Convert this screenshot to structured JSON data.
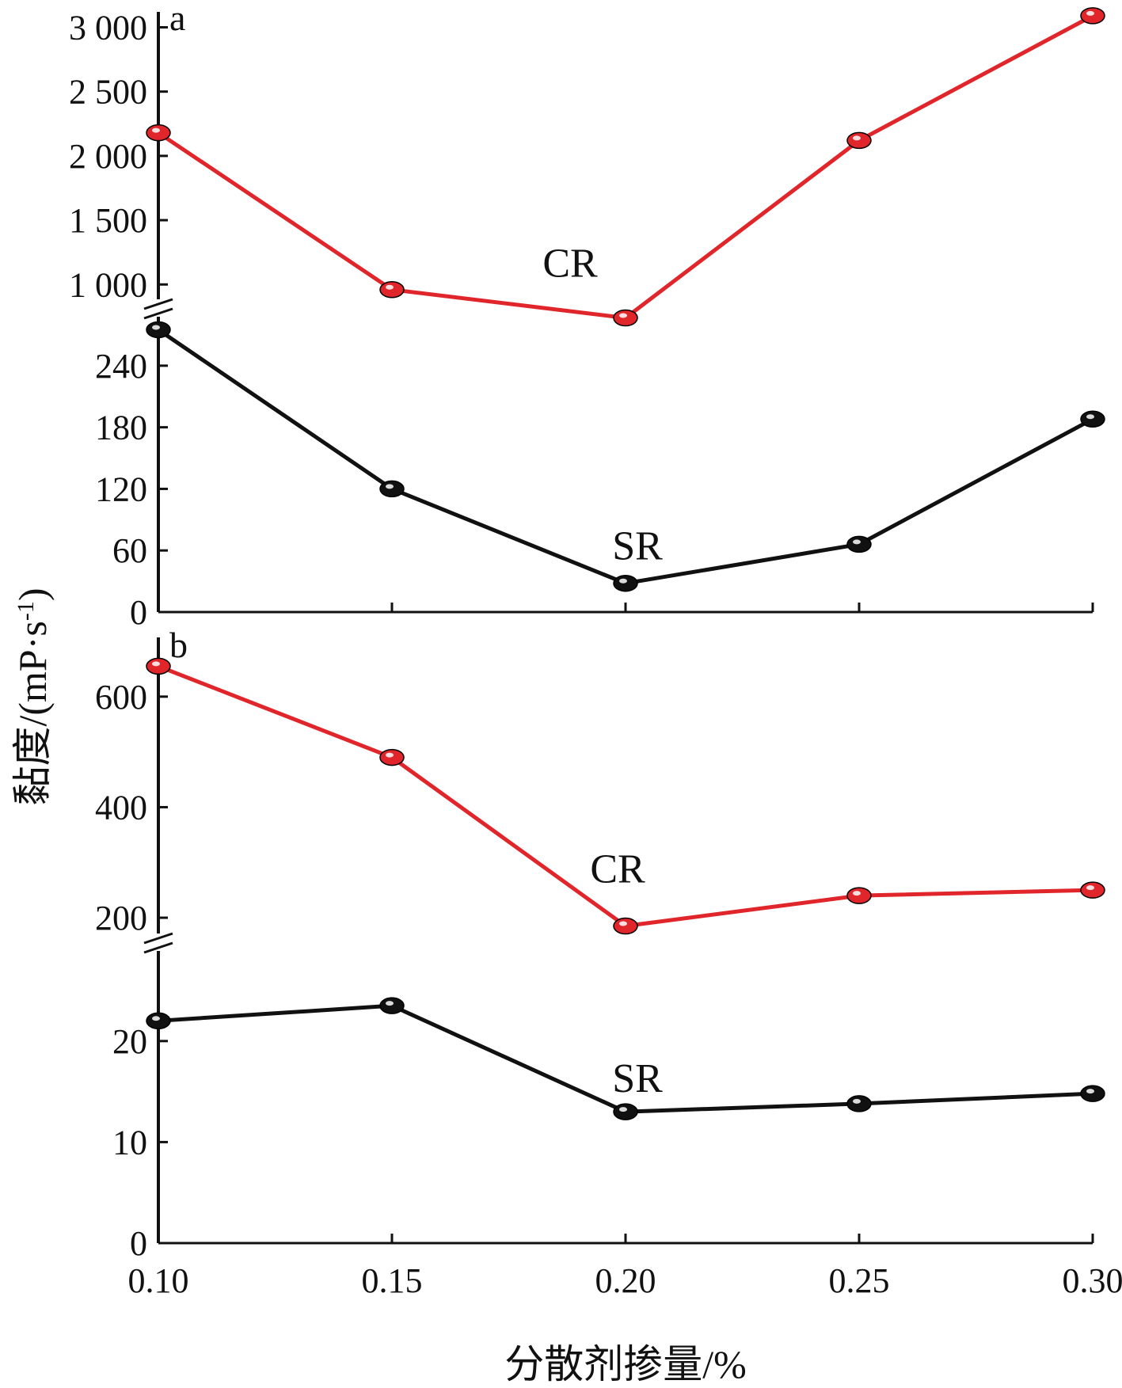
{
  "chart_data": [
    {
      "type": "line",
      "panel_label": "a",
      "x": [
        0.1,
        0.15,
        0.2,
        0.25,
        0.3
      ],
      "x_tick_labels": [
        "0.10",
        "0.15",
        "0.20",
        "0.25",
        "0.30"
      ],
      "xlabel": "分散剂掺量/%",
      "ylabel": "黏度/(mP·s",
      "ylabel_sup": "-1",
      "ylabel_close": ")",
      "broken_axis": true,
      "segments": [
        {
          "ylim": [
            0,
            280
          ],
          "yticks": [
            0,
            60,
            120,
            180,
            240
          ],
          "ytick_labels": [
            "0",
            "60",
            "120",
            "180",
            "240"
          ],
          "series": [
            {
              "name": "SR",
              "color": "#111111",
              "values": [
                275,
                120,
                28,
                66,
                188
              ]
            }
          ]
        },
        {
          "ylim": [
            780,
            3120
          ],
          "yticks": [
            1000,
            1500,
            2000,
            2500,
            3000
          ],
          "ytick_labels": [
            "1 000",
            "1 500",
            "2 000",
            "2 500",
            "3 000"
          ],
          "series": [
            {
              "name": "CR",
              "color": "#e0262b",
              "values": [
                2180,
                960,
                740,
                2120,
                3090
              ]
            }
          ]
        }
      ]
    },
    {
      "type": "line",
      "panel_label": "b",
      "x": [
        0.1,
        0.15,
        0.2,
        0.25,
        0.3
      ],
      "x_tick_labels": [
        "0.10",
        "0.15",
        "0.20",
        "0.25",
        "0.30"
      ],
      "broken_axis": true,
      "segments": [
        {
          "ylim": [
            0,
            29
          ],
          "yticks": [
            0,
            10,
            20
          ],
          "ytick_labels": [
            "0",
            "10",
            "20"
          ],
          "series": [
            {
              "name": "SR",
              "color": "#111111",
              "values": [
                22,
                23.5,
                13,
                13.8,
                14.8
              ]
            }
          ]
        },
        {
          "ylim": [
            170,
            700
          ],
          "yticks": [
            200,
            400,
            600
          ],
          "ytick_labels": [
            "200",
            "400",
            "600"
          ],
          "series": [
            {
              "name": "CR",
              "color": "#e0262b",
              "values": [
                655,
                490,
                185,
                240,
                250
              ]
            }
          ]
        }
      ]
    }
  ]
}
